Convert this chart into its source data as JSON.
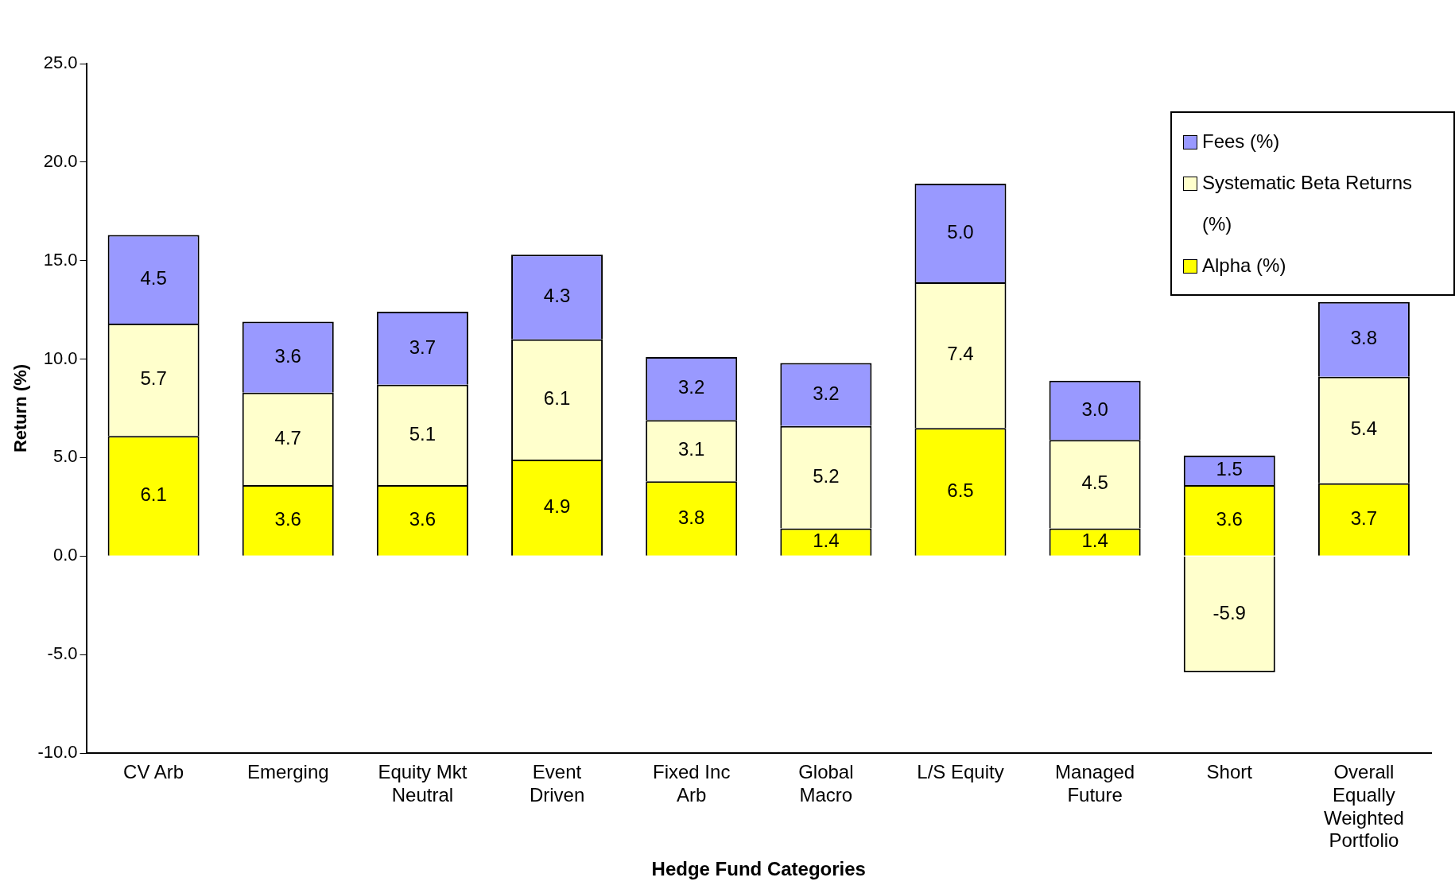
{
  "chart_data": {
    "type": "bar",
    "stacked": true,
    "xlabel": "Hedge Fund Categories",
    "ylabel": "Return (%)",
    "categories": [
      "CV Arb",
      "Emerging",
      "Equity Mkt Neutral",
      "Event Driven",
      "Fixed Inc Arb",
      "Global Macro",
      "L/S Equity",
      "Managed Future",
      "Short",
      "Overall Equally Weighted Portfolio"
    ],
    "series": [
      {
        "name": "Alpha (%)",
        "color": "#ffff00",
        "values": [
          6.1,
          3.6,
          3.6,
          4.9,
          3.8,
          1.4,
          6.5,
          1.4,
          3.6,
          3.7
        ],
        "value_labels": [
          "6.1",
          "3.6",
          "3.6",
          "4.9",
          "3.8",
          "1.4",
          "6.5",
          "1.4",
          "3.6",
          "3.7"
        ]
      },
      {
        "name": "Systematic Beta Returns (%)",
        "color": "#ffffcc",
        "values": [
          5.7,
          4.7,
          5.1,
          6.1,
          3.1,
          5.2,
          7.4,
          4.5,
          -5.9,
          5.4
        ],
        "value_labels": [
          "5.7",
          "4.7",
          "5.1",
          "6.1",
          "3.1",
          "5.2",
          "7.4",
          "4.5",
          "-5.9",
          "5.4"
        ]
      },
      {
        "name": "Fees (%)",
        "color": "#9999ff",
        "values": [
          4.5,
          3.6,
          3.7,
          4.3,
          3.2,
          3.2,
          5.0,
          3.0,
          1.5,
          3.8
        ],
        "value_labels": [
          "4.5",
          "3.6",
          "3.7",
          "4.3",
          "3.2",
          "3.2",
          "5.0",
          "3.0",
          "1.5",
          "3.8"
        ]
      }
    ],
    "ylim": [
      -10,
      25
    ],
    "yticks": [
      {
        "value": -10,
        "label": "-10.0"
      },
      {
        "value": -5,
        "label": "-5.0"
      },
      {
        "value": 0,
        "label": "0.0"
      },
      {
        "value": 5,
        "label": "5.0"
      },
      {
        "value": 10,
        "label": "10.0"
      },
      {
        "value": 15,
        "label": "15.0"
      },
      {
        "value": 20,
        "label": "20.0"
      },
      {
        "value": 25,
        "label": "25.0"
      }
    ],
    "grid": false,
    "legend": "top right"
  }
}
